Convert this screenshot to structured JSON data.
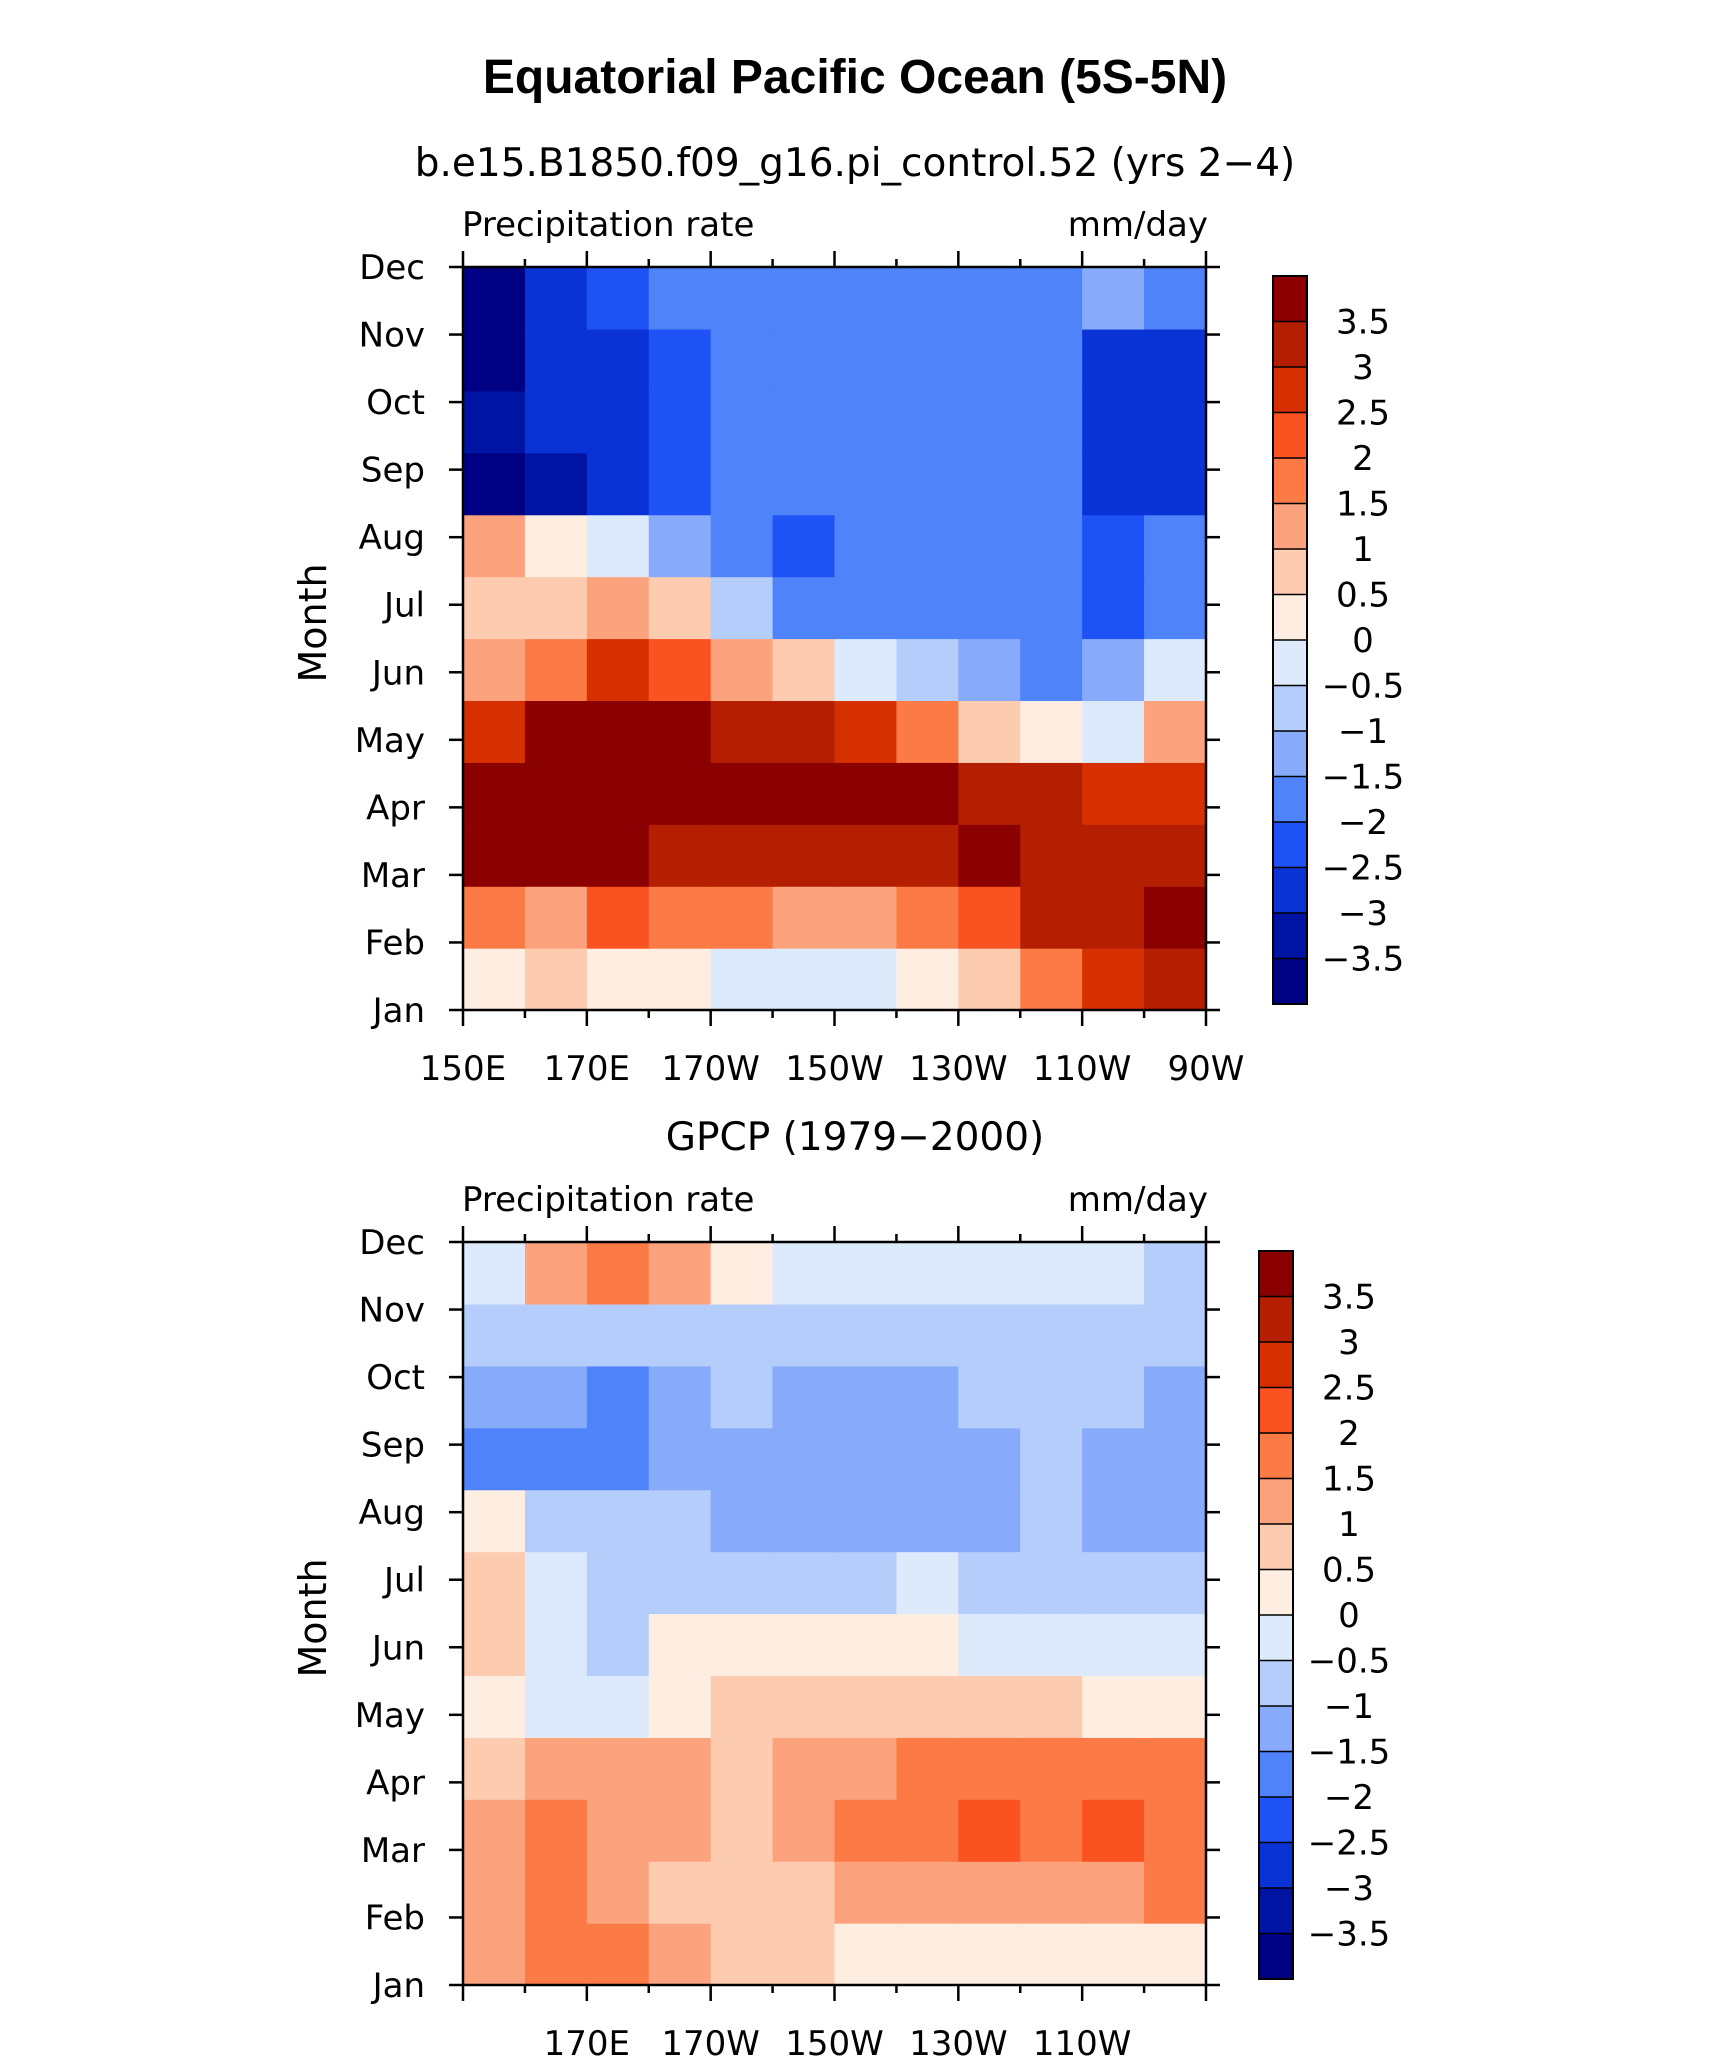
{
  "title": "Equatorial Pacific Ocean (5S-5N)",
  "panels": [
    {
      "subtitle": "b.e15.B1850.f09_g16.pi_control.52 (yrs 2−4)",
      "left_string": "Precipitation rate",
      "right_string": "mm/day",
      "ylabel": "Month"
    },
    {
      "subtitle": "GPCP (1979−2000)",
      "left_string": "Precipitation rate",
      "right_string": "mm/day",
      "ylabel": "Month"
    }
  ],
  "months": [
    "Jan",
    "Feb",
    "Mar",
    "Apr",
    "May",
    "Jun",
    "Jul",
    "Aug",
    "Sep",
    "Oct",
    "Nov",
    "Dec"
  ],
  "colorbar": {
    "labels": [
      "3.5",
      "3",
      "2.5",
      "2",
      "1.5",
      "1",
      "0.5",
      "0",
      "−0.5",
      "−1",
      "−1.5",
      "−2",
      "−2.5",
      "−3",
      "−3.5"
    ],
    "colors": [
      "#8b0000",
      "#b31f00",
      "#d73000",
      "#fa5220",
      "#fb7a45",
      "#fca37e",
      "#fdcbb0",
      "#fdeee1",
      "#dceafc",
      "#b5cdfb",
      "#87abfa",
      "#4f83f9",
      "#1f52f5",
      "#0a33d6",
      "#0014a4",
      "#000082"
    ]
  },
  "chart_data": [
    {
      "type": "heatmap",
      "title": "b.e15.B1850.f09_g16.pi_control.52 (yrs 2−4)",
      "xlabel": "",
      "ylabel": "Month",
      "x_ticks": [
        "150E",
        "170E",
        "170W",
        "150W",
        "130W",
        "110W",
        "90W"
      ],
      "x_lon_range": [
        150,
        270
      ],
      "y_categories": [
        "Jan",
        "Feb",
        "Mar",
        "Apr",
        "May",
        "Jun",
        "Jul",
        "Aug",
        "Sep",
        "Oct",
        "Nov",
        "Dec"
      ],
      "units": "mm/day",
      "levels": [
        -3.5,
        -3,
        -2.5,
        -2,
        -1.5,
        -1,
        -0.5,
        0,
        0.5,
        1,
        1.5,
        2,
        2.5,
        3,
        3.5
      ],
      "x": [
        155,
        165,
        175,
        185,
        195,
        205,
        215,
        225,
        235,
        245,
        255,
        265
      ],
      "values": [
        [
          0.3,
          0.5,
          0.4,
          0.0,
          -0.2,
          -0.4,
          -0.3,
          0.2,
          0.9,
          1.6,
          2.6,
          3.0
        ],
        [
          1.5,
          1.3,
          2.0,
          1.8,
          1.5,
          1.2,
          1.2,
          1.5,
          2.4,
          3.0,
          3.2,
          3.5
        ],
        [
          3.8,
          3.8,
          3.5,
          3.4,
          3.1,
          3.2,
          3.1,
          3.3,
          3.6,
          3.4,
          3.4,
          3.4
        ],
        [
          3.8,
          3.9,
          3.9,
          3.9,
          3.9,
          3.9,
          3.8,
          3.6,
          3.4,
          3.0,
          2.6,
          2.6
        ],
        [
          2.6,
          3.7,
          3.6,
          3.5,
          3.4,
          3.0,
          2.5,
          1.5,
          0.8,
          0.0,
          -0.2,
          1.0
        ],
        [
          1.4,
          1.5,
          2.8,
          2.4,
          1.4,
          0.5,
          -0.5,
          -1.0,
          -1.4,
          -1.6,
          -1.4,
          -0.5
        ],
        [
          0.9,
          0.8,
          1.0,
          0.5,
          -0.8,
          -1.6,
          -2.0,
          -2.0,
          -2.0,
          -2.0,
          -2.1,
          -1.6
        ],
        [
          1.0,
          0.4,
          -0.5,
          -1.4,
          -2.0,
          -2.1,
          -2.0,
          -2.0,
          -2.0,
          -2.0,
          -2.1,
          -2.0
        ],
        [
          -3.6,
          -3.4,
          -2.8,
          -2.3,
          -2.0,
          -2.0,
          -2.0,
          -2.0,
          -2.0,
          -2.0,
          -2.8,
          -3.0
        ],
        [
          -3.1,
          -3.0,
          -2.6,
          -2.3,
          -2.0,
          -2.0,
          -2.0,
          -2.0,
          -2.0,
          -2.0,
          -2.6,
          -3.0
        ],
        [
          -3.6,
          -3.0,
          -2.6,
          -2.1,
          -2.0,
          -2.0,
          -2.0,
          -2.0,
          -2.0,
          -2.0,
          -2.6,
          -2.8
        ],
        [
          -3.6,
          -2.8,
          -2.3,
          -2.0,
          -2.0,
          -2.0,
          -2.0,
          -1.8,
          -1.6,
          -1.6,
          -1.5,
          -1.6
        ]
      ]
    },
    {
      "type": "heatmap",
      "title": "GPCP (1979−2000)",
      "xlabel": "",
      "ylabel": "Month",
      "x_ticks": [
        "170E",
        "170W",
        "150W",
        "130W",
        "110W"
      ],
      "x_lon_range": [
        150,
        270
      ],
      "y_categories": [
        "Jan",
        "Feb",
        "Mar",
        "Apr",
        "May",
        "Jun",
        "Jul",
        "Aug",
        "Sep",
        "Oct",
        "Nov",
        "Dec"
      ],
      "units": "mm/day",
      "levels": [
        -3.5,
        -3,
        -2.5,
        -2,
        -1.5,
        -1,
        -0.5,
        0,
        0.5,
        1,
        1.5,
        2,
        2.5,
        3,
        3.5
      ],
      "x": [
        155,
        165,
        175,
        185,
        195,
        205,
        215,
        225,
        235,
        245,
        255,
        265
      ],
      "values": [
        [
          1.3,
          1.5,
          1.8,
          1.2,
          0.6,
          0.5,
          0.3,
          0.2,
          0.2,
          0.2,
          0.3,
          0.3
        ],
        [
          1.4,
          1.6,
          1.3,
          0.7,
          0.7,
          0.9,
          1.0,
          1.0,
          1.1,
          1.2,
          1.2,
          1.5
        ],
        [
          1.2,
          1.6,
          1.3,
          1.0,
          0.7,
          1.2,
          1.8,
          1.9,
          2.3,
          1.8,
          2.2,
          1.8
        ],
        [
          0.8,
          1.4,
          1.2,
          1.0,
          0.9,
          1.0,
          1.4,
          1.6,
          1.9,
          1.8,
          1.9,
          1.8
        ],
        [
          0.2,
          -0.5,
          -0.4,
          0.3,
          0.5,
          0.8,
          0.7,
          0.7,
          0.6,
          0.5,
          0.4,
          0.4
        ],
        [
          0.5,
          -0.4,
          -0.6,
          0.3,
          0.2,
          0.1,
          0.0,
          0.0,
          -0.1,
          -0.2,
          -0.3,
          -0.2
        ],
        [
          0.5,
          -0.5,
          -0.8,
          -0.6,
          -0.6,
          -0.6,
          -0.6,
          -0.5,
          -0.7,
          -0.8,
          -0.9,
          -1.0
        ],
        [
          0.4,
          -0.8,
          -1.0,
          -0.9,
          -1.1,
          -1.4,
          -1.4,
          -1.3,
          -1.2,
          -0.9,
          -1.1,
          -1.4
        ],
        [
          -1.8,
          -1.8,
          -2.0,
          -1.4,
          -1.2,
          -1.5,
          -1.5,
          -1.5,
          -1.2,
          -0.9,
          -1.2,
          -1.4
        ],
        [
          -1.3,
          -1.4,
          -1.7,
          -1.3,
          -0.9,
          -1.2,
          -1.2,
          -1.2,
          -0.9,
          -0.8,
          -0.9,
          -1.4
        ],
        [
          -1.0,
          -0.8,
          -0.9,
          -0.8,
          -0.8,
          -0.6,
          -0.7,
          -0.8,
          -0.7,
          -0.6,
          -0.7,
          -0.7
        ],
        [
          -0.3,
          1.2,
          1.9,
          1.0,
          0.2,
          -0.3,
          -0.4,
          -0.3,
          -0.4,
          -0.5,
          -0.5,
          -0.6
        ]
      ]
    }
  ]
}
